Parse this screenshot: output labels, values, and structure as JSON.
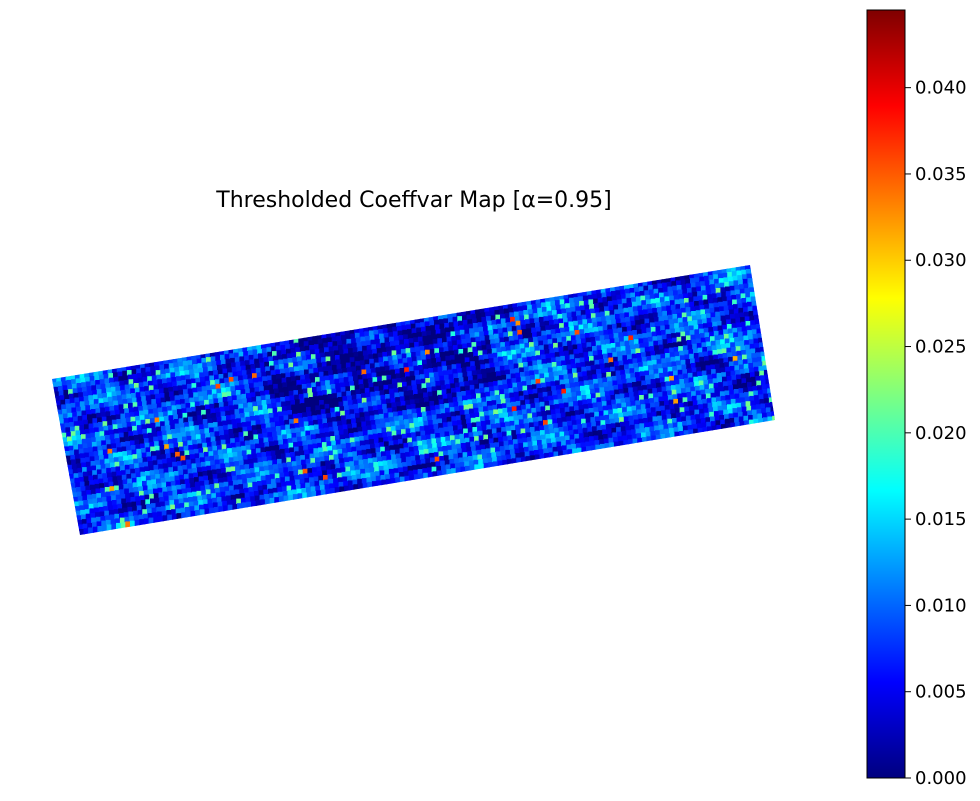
{
  "chart_data": {
    "type": "heatmap",
    "title": "Thresholded Coeffvar Map [α=0.95]",
    "xlabel": "",
    "ylabel": "",
    "axes_visible": false,
    "colormap": "jet",
    "colorbar": {
      "orientation": "vertical",
      "placement": "right",
      "range": [
        0,
        0.0445
      ],
      "ticks": [
        0.0,
        0.005,
        0.01,
        0.015,
        0.02,
        0.025,
        0.03,
        0.035,
        0.04
      ],
      "tick_labels": [
        "0.000",
        "0.005",
        "0.010",
        "0.015",
        "0.020",
        "0.025",
        "0.030",
        "0.035",
        "0.040"
      ]
    },
    "colors": {
      "jet_stops": [
        "#00007f",
        "#0000ff",
        "#007fff",
        "#00ffff",
        "#7fff7f",
        "#ffff00",
        "#ff7f00",
        "#ff0000",
        "#7f0000"
      ],
      "background": "#ffffff"
    }
  }
}
